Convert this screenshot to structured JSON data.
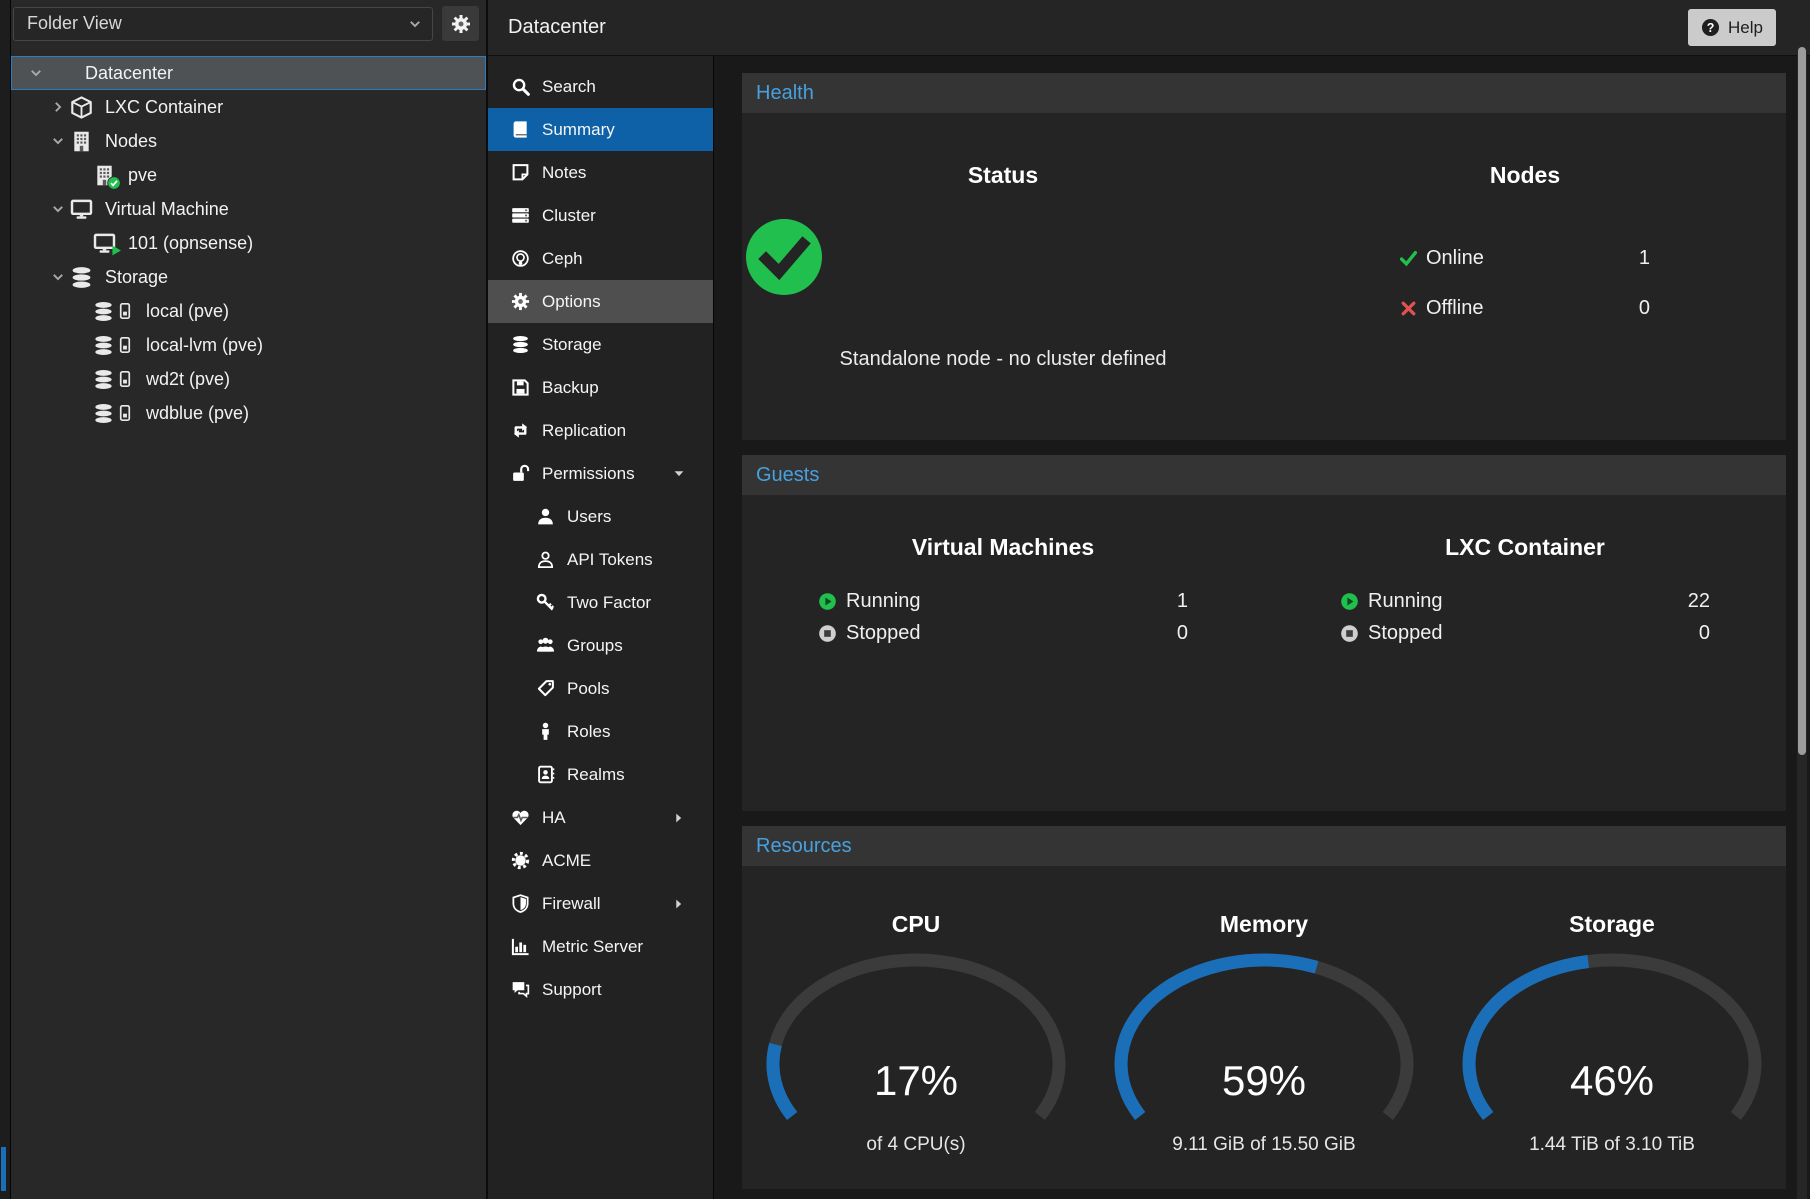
{
  "tree": {
    "view_selector": "Folder View",
    "items": [
      {
        "label": "Datacenter",
        "level": 0,
        "icon": "server-stack",
        "expand": "expanded",
        "selected": true
      },
      {
        "label": "LXC Container",
        "level": 1,
        "icon": "cube",
        "expand": "collapsed"
      },
      {
        "label": "Nodes",
        "level": 1,
        "icon": "building",
        "expand": "expanded"
      },
      {
        "label": "pve",
        "level": 2,
        "icon": "building-check"
      },
      {
        "label": "Virtual Machine",
        "level": 1,
        "icon": "monitor",
        "expand": "expanded"
      },
      {
        "label": "101 (opnsense)",
        "level": 2,
        "icon": "monitor-play"
      },
      {
        "label": "Storage",
        "level": 1,
        "icon": "database",
        "expand": "expanded"
      },
      {
        "label": "local (pve)",
        "level": 2,
        "icon": "database-drive"
      },
      {
        "label": "local-lvm (pve)",
        "level": 2,
        "icon": "database-drive"
      },
      {
        "label": "wd2t (pve)",
        "level": 2,
        "icon": "database-drive"
      },
      {
        "label": "wdblue (pve)",
        "level": 2,
        "icon": "database-drive"
      }
    ]
  },
  "header": {
    "title": "Datacenter",
    "help_label": "Help"
  },
  "menu": {
    "items": [
      {
        "label": "Search",
        "icon": "search"
      },
      {
        "label": "Summary",
        "icon": "book",
        "selected": true
      },
      {
        "label": "Notes",
        "icon": "note"
      },
      {
        "label": "Cluster",
        "icon": "cluster"
      },
      {
        "label": "Ceph",
        "icon": "ceph"
      },
      {
        "label": "Options",
        "icon": "gear",
        "hovered": true
      },
      {
        "label": "Storage",
        "icon": "database"
      },
      {
        "label": "Backup",
        "icon": "floppy"
      },
      {
        "label": "Replication",
        "icon": "replication"
      },
      {
        "label": "Permissions",
        "icon": "unlock",
        "expand": "expanded"
      },
      {
        "label": "Users",
        "icon": "user",
        "sub": true
      },
      {
        "label": "API Tokens",
        "icon": "user-o",
        "sub": true
      },
      {
        "label": "Two Factor",
        "icon": "key",
        "sub": true
      },
      {
        "label": "Groups",
        "icon": "users",
        "sub": true
      },
      {
        "label": "Pools",
        "icon": "tag",
        "sub": true
      },
      {
        "label": "Roles",
        "icon": "person",
        "sub": true
      },
      {
        "label": "Realms",
        "icon": "address-book",
        "sub": true
      },
      {
        "label": "HA",
        "icon": "heartbeat",
        "expand": "collapsed"
      },
      {
        "label": "ACME",
        "icon": "certificate"
      },
      {
        "label": "Firewall",
        "icon": "shield",
        "expand": "collapsed"
      },
      {
        "label": "Metric Server",
        "icon": "bar-chart"
      },
      {
        "label": "Support",
        "icon": "comments"
      }
    ]
  },
  "panels": {
    "health": {
      "title": "Health",
      "status": {
        "title": "Status",
        "message": "Standalone node - no cluster defined"
      },
      "nodes": {
        "title": "Nodes",
        "rows": [
          {
            "label": "Online",
            "value": "1",
            "icon": "check"
          },
          {
            "label": "Offline",
            "value": "0",
            "icon": "cross"
          }
        ]
      }
    },
    "guests": {
      "title": "Guests",
      "columns": [
        {
          "title": "Virtual Machines",
          "rows": [
            {
              "label": "Running",
              "value": "1",
              "icon": "play-circle"
            },
            {
              "label": "Stopped",
              "value": "0",
              "icon": "stop-circle"
            }
          ]
        },
        {
          "title": "LXC Container",
          "rows": [
            {
              "label": "Running",
              "value": "22",
              "icon": "play-circle"
            },
            {
              "label": "Stopped",
              "value": "0",
              "icon": "stop-circle"
            }
          ]
        }
      ]
    },
    "resources": {
      "title": "Resources",
      "chart_data": [
        {
          "type": "gauge",
          "title": "CPU",
          "percent": 17,
          "label": "17%",
          "sublabel": "of 4 CPU(s)"
        },
        {
          "type": "gauge",
          "title": "Memory",
          "percent": 59,
          "label": "59%",
          "sublabel": "9.11 GiB of 15.50 GiB"
        },
        {
          "type": "gauge",
          "title": "Storage",
          "percent": 46,
          "label": "46%",
          "sublabel": "1.44 TiB of 3.10 TiB"
        }
      ]
    }
  },
  "colors": {
    "selection_blue": "#0e61a6",
    "panel_title_blue": "#47a1e0",
    "gauge_blue": "#1b6fb9",
    "gauge_track": "#3b3b3b",
    "ok_green": "#21c04e",
    "error_red": "#e25252",
    "tree_selected_border": "#2b7cc0"
  }
}
